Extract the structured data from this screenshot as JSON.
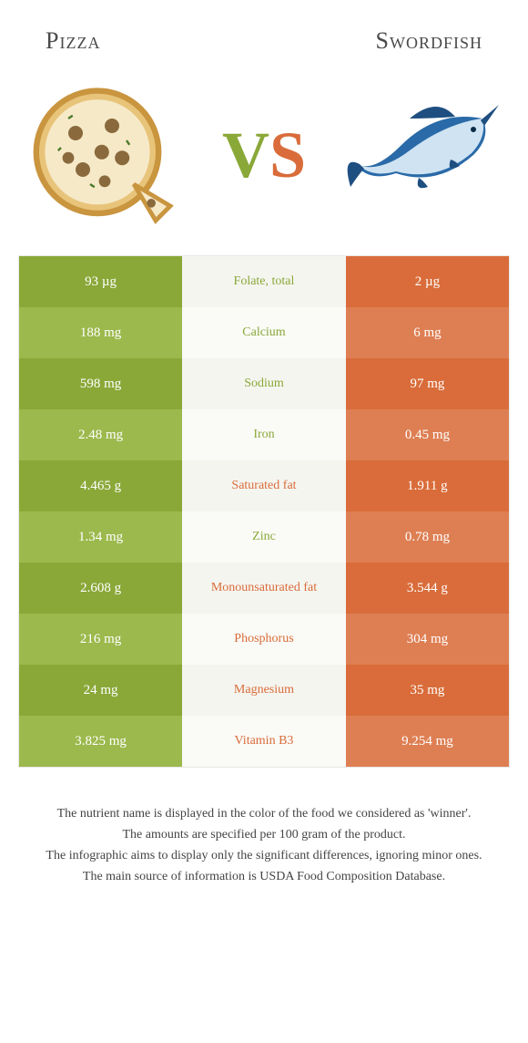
{
  "header": {
    "left": "Pizza",
    "right": "Swordfish"
  },
  "vs": {
    "v": "V",
    "s": "S"
  },
  "colors": {
    "green_dark": "#8aa838",
    "green_light": "#9cb94d",
    "orange_dark": "#d96c3a",
    "orange_light": "#de7f53",
    "mid_bg": "#f5f5f0",
    "mid_alt": "#fafaf6"
  },
  "rows": [
    {
      "left": "93 µg",
      "label": "Folate, total",
      "right": "2 µg",
      "winner": "left"
    },
    {
      "left": "188 mg",
      "label": "Calcium",
      "right": "6 mg",
      "winner": "left"
    },
    {
      "left": "598 mg",
      "label": "Sodium",
      "right": "97 mg",
      "winner": "left"
    },
    {
      "left": "2.48 mg",
      "label": "Iron",
      "right": "0.45 mg",
      "winner": "left"
    },
    {
      "left": "4.465 g",
      "label": "Saturated fat",
      "right": "1.911 g",
      "winner": "right"
    },
    {
      "left": "1.34 mg",
      "label": "Zinc",
      "right": "0.78 mg",
      "winner": "left"
    },
    {
      "left": "2.608 g",
      "label": "Monounsaturated fat",
      "right": "3.544 g",
      "winner": "right"
    },
    {
      "left": "216 mg",
      "label": "Phosphorus",
      "right": "304 mg",
      "winner": "right"
    },
    {
      "left": "24 mg",
      "label": "Magnesium",
      "right": "35 mg",
      "winner": "right"
    },
    {
      "left": "3.825 mg",
      "label": "Vitamin B3",
      "right": "9.254 mg",
      "winner": "right"
    }
  ],
  "footer": {
    "l1": "The nutrient name is displayed in the color of the food we considered as 'winner'.",
    "l2": "The amounts are specified per 100 gram of the product.",
    "l3": "The infographic aims to display only the significant differences, ignoring minor ones.",
    "l4": "The main source of information is USDA Food Composition Database."
  }
}
